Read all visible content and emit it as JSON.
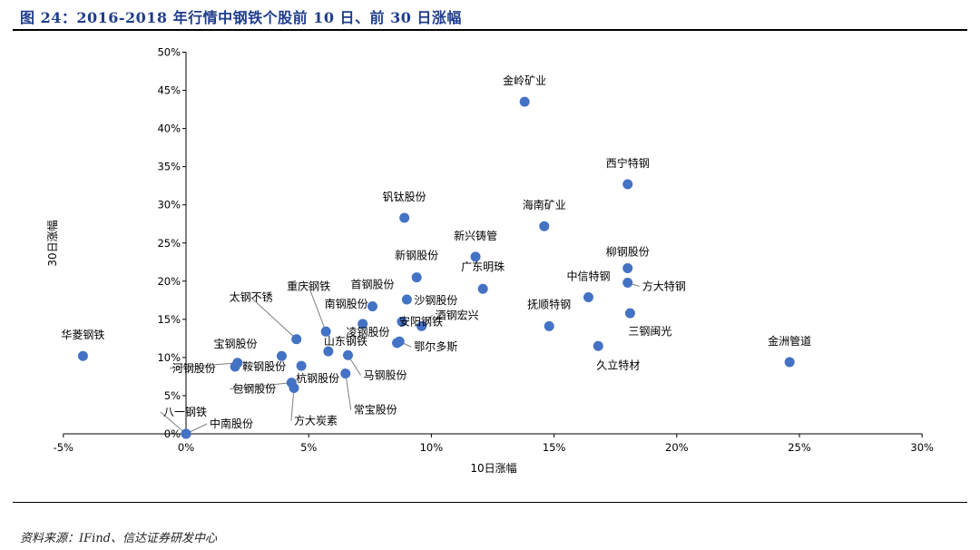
{
  "page": {
    "title": "图 24：2016-2018 年行情中钢铁个股前 10 日、前 30 日涨幅",
    "source": "资料来源：IFind、信达证券研发中心"
  },
  "colors": {
    "point": "#4472c4",
    "title": "#1f3d8c",
    "axis": "#000000",
    "leader": "#7f7f7f"
  },
  "chart_data": {
    "type": "scatter",
    "title": "",
    "xlabel": "10日涨幅",
    "ylabel": "30日涨幅",
    "xlim": [
      -5,
      30
    ],
    "ylim": [
      0,
      50
    ],
    "x_ticks": [
      -5,
      0,
      5,
      10,
      15,
      20,
      25,
      30
    ],
    "y_ticks": [
      0,
      5,
      10,
      15,
      20,
      25,
      30,
      35,
      40,
      45,
      50
    ],
    "x_tick_labels": [
      "-5%",
      "0%",
      "5%",
      "10%",
      "15%",
      "20%",
      "25%",
      "30%"
    ],
    "y_tick_labels": [
      "0%",
      "5%",
      "10%",
      "15%",
      "20%",
      "25%",
      "30%",
      "35%",
      "40%",
      "45%",
      "50%"
    ],
    "grid": false,
    "points": [
      {
        "name": "金岭矿业",
        "x": 13.8,
        "y": 43.5
      },
      {
        "name": "西宁特钢",
        "x": 18.0,
        "y": 32.7
      },
      {
        "name": "海南矿业",
        "x": 14.6,
        "y": 27.2
      },
      {
        "name": "钒钛股份",
        "x": 8.9,
        "y": 28.3
      },
      {
        "name": "新兴铸管",
        "x": 11.8,
        "y": 23.2
      },
      {
        "name": "柳钢股份",
        "x": 18.0,
        "y": 21.7
      },
      {
        "name": "新钢股份",
        "x": 9.4,
        "y": 20.5
      },
      {
        "name": "广东明珠",
        "x": 12.1,
        "y": 19.0
      },
      {
        "name": "方大特钢",
        "x": 18.0,
        "y": 19.8
      },
      {
        "name": "中信特钢",
        "x": 16.4,
        "y": 17.9
      },
      {
        "name": "沙钢股份",
        "x": 9.0,
        "y": 17.6
      },
      {
        "name": "首钢股份",
        "x": 7.6,
        "y": 16.7
      },
      {
        "name": "三钢闽光",
        "x": 18.1,
        "y": 15.8
      },
      {
        "name": "抚顺特钢",
        "x": 14.8,
        "y": 14.1
      },
      {
        "name": "酒钢宏兴",
        "x": 9.6,
        "y": 14.1
      },
      {
        "name": "南钢股份",
        "x": 7.2,
        "y": 14.4
      },
      {
        "name": "安阳钢铁",
        "x": 8.8,
        "y": 14.7
      },
      {
        "name": "重庆钢铁",
        "x": 5.7,
        "y": 13.4
      },
      {
        "name": "山东钢铁",
        "x": 5.8,
        "y": 10.8
      },
      {
        "name": "太钢不锈",
        "x": 4.5,
        "y": 12.4
      },
      {
        "name": "华菱钢铁",
        "x": -4.2,
        "y": 10.2
      },
      {
        "name": "久立特材",
        "x": 16.8,
        "y": 11.5
      },
      {
        "name": "凌钢股份",
        "x": 8.6,
        "y": 11.9
      },
      {
        "name": "鄂尔多斯",
        "x": 8.7,
        "y": 12.1
      },
      {
        "name": "宝钢股份",
        "x": 3.9,
        "y": 10.2
      },
      {
        "name": "马钢股份",
        "x": 6.6,
        "y": 10.3
      },
      {
        "name": "金洲管道",
        "x": 24.6,
        "y": 9.4
      },
      {
        "name": "河钢股份",
        "x": 2.1,
        "y": 9.3
      },
      {
        "name": "鞍钢股份",
        "x": 2.0,
        "y": 8.8
      },
      {
        "name": "杭钢股份",
        "x": 4.7,
        "y": 8.9
      },
      {
        "name": "常宝股份",
        "x": 6.5,
        "y": 7.9
      },
      {
        "name": "包钢股份",
        "x": 4.3,
        "y": 6.7
      },
      {
        "name": "方大炭素",
        "x": 4.4,
        "y": 6.0
      },
      {
        "name": "八一钢铁",
        "x": 0.0,
        "y": 0.0
      },
      {
        "name": "中南股份",
        "x": 0.0,
        "y": 0.0
      }
    ]
  }
}
